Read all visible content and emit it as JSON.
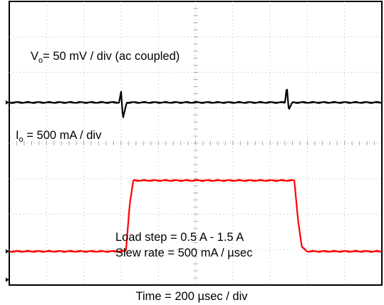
{
  "chart_data": {
    "type": "line",
    "title": "",
    "xlabel": "Time = 200 µsec / div",
    "ylabel": "",
    "grid": true,
    "x_divisions": 10,
    "y_divisions": 8,
    "x_unit": "µs",
    "x_range": [
      0,
      2000
    ],
    "annotations": {
      "load_step": "Load step = 0.5 A - 1.5 A",
      "slew_rate": "Slew rate = 500 mA / µsec"
    },
    "channels": [
      {
        "id": "vo",
        "label_main": "V",
        "label_sub": "o",
        "label_rest": "= 50 mV / div (ac coupled)",
        "color": "#000000",
        "unit": "mV",
        "volts_per_div": 50,
        "baseline_div": 2.85,
        "marker_div": 2.85,
        "x": [
          0,
          590,
          600,
          610,
          630,
          1480,
          1490,
          1500,
          1520,
          2000
        ],
        "y": [
          0,
          0,
          16,
          -23,
          0,
          0,
          23,
          -10,
          0,
          0
        ]
      },
      {
        "id": "io",
        "label_main": "I",
        "label_sub": "o",
        "label_rest": " = 500 mA / div",
        "color": "#ff0000",
        "unit": "A",
        "amps_per_div": 0.5,
        "baseline_div": 7.05,
        "marker_div": 7.05,
        "x": [
          0,
          626,
          646,
          666,
          1530,
          1550,
          1570,
          1600,
          1640,
          2000
        ],
        "y": [
          0.5,
          0.5,
          1.15,
          1.5,
          1.5,
          0.95,
          0.56,
          0.5,
          0.5,
          0.5
        ]
      }
    ]
  }
}
